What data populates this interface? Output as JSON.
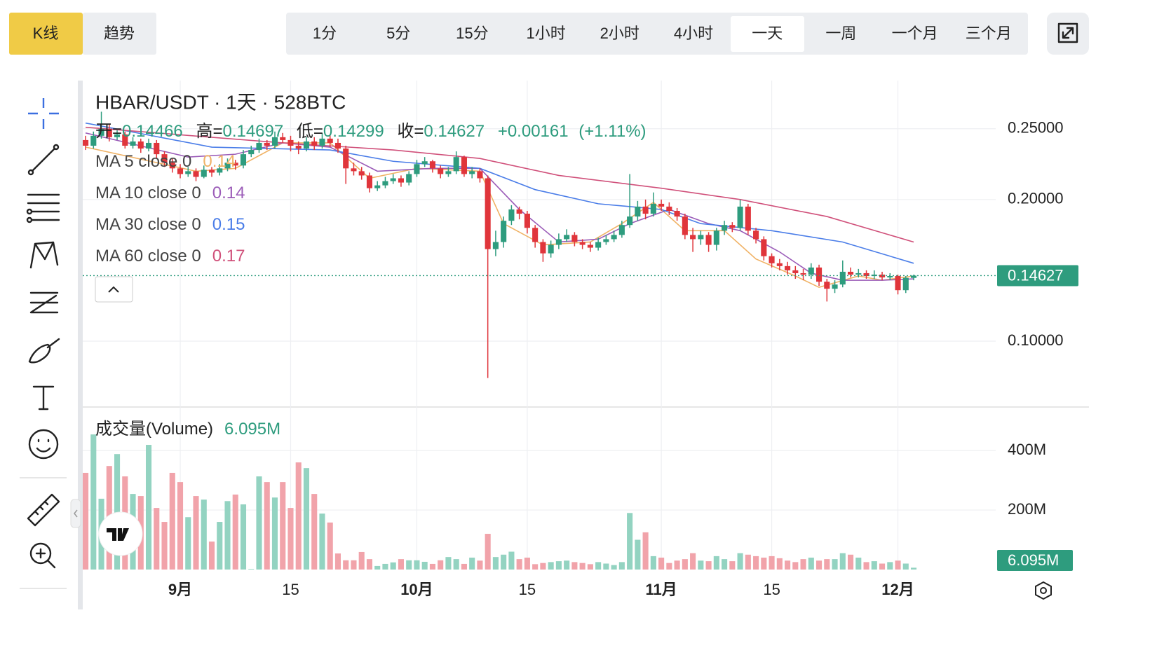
{
  "toolbar": {
    "modes": [
      "K线",
      "趋势"
    ],
    "intervals": [
      "1分",
      "5分",
      "15分",
      "1小时",
      "2小时",
      "4小时",
      "一天",
      "一周",
      "一个月",
      "三个月"
    ]
  },
  "chart_data": {
    "type": "candlestick",
    "title": "HBAR/USDT · 1天 · 528BTC",
    "ohlc_labels": [
      "开=",
      "高=",
      "低=",
      "收="
    ],
    "change": "+0.00161",
    "change_pct": "(+1.11%)",
    "x": [
      0,
      1,
      2,
      3,
      4,
      5,
      6,
      7,
      8,
      9,
      10,
      11,
      12,
      13,
      14,
      15,
      16,
      17,
      18,
      19,
      20,
      21,
      22,
      23,
      24,
      25,
      26,
      27,
      28,
      29,
      30,
      31,
      32,
      33,
      34,
      35,
      36,
      37,
      38,
      39,
      40,
      41,
      42,
      43,
      44,
      45,
      46,
      47,
      48,
      49,
      50,
      51,
      52,
      53,
      54,
      55,
      56,
      57,
      58,
      59,
      60,
      61,
      62,
      63,
      64,
      65,
      66,
      67,
      68,
      69,
      70,
      71,
      72,
      73,
      74,
      75,
      76,
      77,
      78,
      79,
      80,
      81,
      82,
      83,
      84,
      85,
      86,
      87,
      88,
      89,
      90,
      91,
      92,
      93,
      94,
      95,
      96,
      97,
      98,
      99,
      100,
      101,
      102,
      103,
      104,
      105
    ],
    "xlim": [
      -0.36,
      115.4
    ],
    "xticks": [
      {
        "value": 12,
        "label": "9月"
      },
      {
        "value": 26,
        "label": "15"
      },
      {
        "value": 42,
        "label": "10月"
      },
      {
        "value": 56,
        "label": "15"
      },
      {
        "value": 73,
        "label": "11月"
      },
      {
        "value": 87,
        "label": "15"
      },
      {
        "value": 103,
        "label": "12月"
      }
    ],
    "open": [
      0.242,
      0.238,
      0.245,
      0.25,
      0.244,
      0.246,
      0.238,
      0.241,
      0.236,
      0.24,
      0.232,
      0.226,
      0.222,
      0.218,
      0.22,
      0.216,
      0.221,
      0.219,
      0.222,
      0.226,
      0.224,
      0.232,
      0.235,
      0.24,
      0.238,
      0.244,
      0.242,
      0.238,
      0.236,
      0.241,
      0.238,
      0.243,
      0.24,
      0.236,
      0.222,
      0.22,
      0.217,
      0.208,
      0.21,
      0.213,
      0.215,
      0.212,
      0.218,
      0.225,
      0.227,
      0.222,
      0.218,
      0.22,
      0.23,
      0.218,
      0.22,
      0.215,
      0.165,
      0.17,
      0.185,
      0.193,
      0.19,
      0.18,
      0.17,
      0.162,
      0.168,
      0.172,
      0.175,
      0.17,
      0.168,
      0.166,
      0.17,
      0.172,
      0.175,
      0.182,
      0.188,
      0.195,
      0.19,
      0.197,
      0.195,
      0.192,
      0.188,
      0.175,
      0.172,
      0.175,
      0.168,
      0.178,
      0.182,
      0.18,
      0.195,
      0.178,
      0.172,
      0.16,
      0.155,
      0.153,
      0.15,
      0.148,
      0.147,
      0.152,
      0.142,
      0.137,
      0.14,
      0.149,
      0.147,
      0.148,
      0.146,
      0.147,
      0.145,
      0.146,
      0.136,
      0.14466
    ],
    "high": [
      0.245,
      0.248,
      0.262,
      0.253,
      0.249,
      0.248,
      0.244,
      0.243,
      0.243,
      0.242,
      0.234,
      0.229,
      0.225,
      0.223,
      0.222,
      0.224,
      0.223,
      0.225,
      0.229,
      0.228,
      0.235,
      0.238,
      0.243,
      0.242,
      0.248,
      0.247,
      0.245,
      0.241,
      0.244,
      0.244,
      0.247,
      0.246,
      0.243,
      0.238,
      0.226,
      0.223,
      0.219,
      0.213,
      0.216,
      0.218,
      0.217,
      0.22,
      0.228,
      0.23,
      0.228,
      0.224,
      0.223,
      0.234,
      0.231,
      0.223,
      0.222,
      0.217,
      0.178,
      0.188,
      0.196,
      0.195,
      0.192,
      0.182,
      0.172,
      0.171,
      0.176,
      0.179,
      0.177,
      0.172,
      0.17,
      0.173,
      0.175,
      0.178,
      0.185,
      0.218,
      0.199,
      0.2,
      0.205,
      0.2,
      0.198,
      0.194,
      0.19,
      0.18,
      0.178,
      0.177,
      0.18,
      0.185,
      0.184,
      0.2,
      0.197,
      0.18,
      0.174,
      0.162,
      0.158,
      0.156,
      0.153,
      0.151,
      0.155,
      0.154,
      0.144,
      0.143,
      0.157,
      0.152,
      0.151,
      0.15,
      0.15,
      0.149,
      0.148,
      0.147,
      0.146,
      0.14697
    ],
    "low": [
      0.235,
      0.236,
      0.243,
      0.241,
      0.242,
      0.236,
      0.236,
      0.233,
      0.234,
      0.229,
      0.223,
      0.219,
      0.215,
      0.216,
      0.213,
      0.215,
      0.216,
      0.217,
      0.22,
      0.221,
      0.222,
      0.23,
      0.233,
      0.235,
      0.236,
      0.24,
      0.234,
      0.232,
      0.234,
      0.235,
      0.236,
      0.237,
      0.233,
      0.211,
      0.217,
      0.214,
      0.205,
      0.206,
      0.208,
      0.211,
      0.209,
      0.21,
      0.216,
      0.223,
      0.219,
      0.215,
      0.216,
      0.218,
      0.216,
      0.215,
      0.212,
      0.074,
      0.16,
      0.166,
      0.182,
      0.186,
      0.176,
      0.166,
      0.156,
      0.159,
      0.165,
      0.17,
      0.167,
      0.165,
      0.163,
      0.164,
      0.168,
      0.17,
      0.173,
      0.18,
      0.185,
      0.186,
      0.188,
      0.192,
      0.189,
      0.185,
      0.172,
      0.163,
      0.168,
      0.163,
      0.164,
      0.175,
      0.177,
      0.178,
      0.175,
      0.169,
      0.157,
      0.152,
      0.15,
      0.147,
      0.144,
      0.143,
      0.144,
      0.139,
      0.128,
      0.134,
      0.138,
      0.145,
      0.145,
      0.144,
      0.144,
      0.143,
      0.143,
      0.133,
      0.134,
      0.14299
    ],
    "close": [
      0.238,
      0.245,
      0.25,
      0.244,
      0.246,
      0.238,
      0.241,
      0.236,
      0.24,
      0.232,
      0.226,
      0.222,
      0.218,
      0.22,
      0.216,
      0.221,
      0.219,
      0.222,
      0.226,
      0.224,
      0.232,
      0.235,
      0.24,
      0.238,
      0.244,
      0.242,
      0.238,
      0.236,
      0.241,
      0.238,
      0.243,
      0.24,
      0.236,
      0.222,
      0.22,
      0.217,
      0.208,
      0.21,
      0.213,
      0.215,
      0.212,
      0.218,
      0.225,
      0.227,
      0.222,
      0.218,
      0.22,
      0.23,
      0.218,
      0.22,
      0.215,
      0.165,
      0.17,
      0.185,
      0.193,
      0.19,
      0.18,
      0.17,
      0.162,
      0.168,
      0.172,
      0.175,
      0.17,
      0.168,
      0.166,
      0.17,
      0.172,
      0.175,
      0.182,
      0.188,
      0.195,
      0.19,
      0.197,
      0.195,
      0.192,
      0.188,
      0.175,
      0.172,
      0.175,
      0.168,
      0.178,
      0.182,
      0.18,
      0.195,
      0.178,
      0.172,
      0.16,
      0.155,
      0.153,
      0.15,
      0.148,
      0.147,
      0.152,
      0.142,
      0.137,
      0.14,
      0.149,
      0.147,
      0.148,
      0.146,
      0.147,
      0.145,
      0.146,
      0.136,
      0.1447,
      0.14627
    ],
    "ylim": [
      0.054,
      0.284
    ],
    "yticks": [
      {
        "value": 0.25,
        "label": "0.25000"
      },
      {
        "value": 0.2,
        "label": "0.20000"
      },
      {
        "value": 0.1,
        "label": "0.10000"
      }
    ],
    "up_color": "#2e9c7e",
    "down_color": "#e0353b",
    "moving_averages": [
      {
        "name": "MA 5 close 0",
        "value": 0.14,
        "color": "#f0b265",
        "x": [
          0,
          14,
          19,
          25,
          31,
          36,
          42,
          50,
          53,
          58,
          64,
          68,
          72,
          76,
          81,
          85,
          90,
          93,
          98,
          101,
          105
        ],
        "values": [
          0.237,
          0.22,
          0.222,
          0.24,
          0.24,
          0.215,
          0.222,
          0.22,
          0.183,
          0.168,
          0.17,
          0.183,
          0.198,
          0.178,
          0.178,
          0.158,
          0.146,
          0.138,
          0.146,
          0.143,
          0.146
        ]
      },
      {
        "name": "MA 10 close 0",
        "value": 0.14,
        "color": "#9b5cb8",
        "x": [
          0,
          13,
          19,
          25,
          31,
          37,
          44,
          50,
          55,
          60,
          65,
          69,
          74,
          79,
          83,
          88,
          92,
          96,
          101,
          105
        ],
        "values": [
          0.247,
          0.23,
          0.232,
          0.24,
          0.237,
          0.22,
          0.222,
          0.222,
          0.193,
          0.17,
          0.172,
          0.183,
          0.193,
          0.183,
          0.178,
          0.163,
          0.148,
          0.143,
          0.143,
          0.144
        ]
      },
      {
        "name": "MA 30 close 0",
        "value": 0.15,
        "color": "#4a7de8",
        "x": [
          0,
          16,
          31,
          39,
          50,
          57,
          65,
          73,
          78,
          87,
          96,
          105
        ],
        "values": [
          0.254,
          0.237,
          0.235,
          0.227,
          0.222,
          0.207,
          0.197,
          0.193,
          0.183,
          0.178,
          0.17,
          0.155
        ]
      },
      {
        "name": "MA 60 close 0",
        "value": 0.17,
        "color": "#d0507a",
        "x": [
          0,
          25,
          39,
          50,
          60,
          73,
          83,
          94,
          105
        ],
        "values": [
          0.251,
          0.24,
          0.235,
          0.229,
          0.217,
          0.208,
          0.2,
          0.188,
          0.17
        ]
      }
    ],
    "volume": {
      "title": "成交量(Volume)",
      "current_label": "6.095M",
      "values": [
        325,
        454,
        238,
        348,
        388,
        313,
        254,
        247,
        419,
        207,
        160,
        325,
        294,
        176,
        247,
        235,
        94,
        160,
        230,
        252,
        219,
        2,
        313,
        294,
        242,
        294,
        207,
        360,
        341,
        254,
        188,
        158,
        54,
        31,
        31,
        59,
        35,
        12,
        19,
        24,
        35,
        31,
        31,
        26,
        19,
        31,
        42,
        35,
        19,
        40,
        30,
        120,
        42,
        50,
        60,
        35,
        40,
        18,
        22,
        25,
        28,
        30,
        25,
        22,
        18,
        25,
        20,
        15,
        25,
        190,
        100,
        125,
        45,
        40,
        22,
        30,
        35,
        55,
        30,
        28,
        45,
        35,
        28,
        55,
        50,
        45,
        40,
        45,
        38,
        30,
        25,
        35,
        40,
        30,
        35,
        35,
        55,
        50,
        40,
        25,
        28,
        20,
        25,
        30,
        20,
        6.095
      ],
      "ylim": [
        0,
        525
      ],
      "yticks": [
        {
          "value": 200,
          "label": "200M"
        },
        {
          "value": 400,
          "label": "400M"
        }
      ],
      "up_color": "#93d3c1",
      "down_color": "#f1a3aa"
    }
  }
}
